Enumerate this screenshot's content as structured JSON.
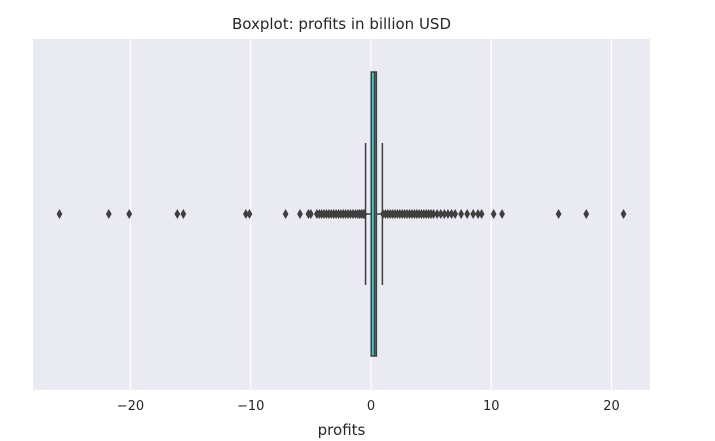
{
  "colors": {
    "plot_background": "#EAEAF2",
    "grid": "#FFFFFF",
    "box_fill": "#3FC9C4",
    "box_edge": "#3F3F3F",
    "flier": "#3F3F3F",
    "text": "#262626"
  },
  "chart_data": {
    "type": "boxplot",
    "orientation": "horizontal",
    "title": "Boxplot: profits in billion USD",
    "xlabel": "profits",
    "ylabel": "",
    "xlim": [
      -28.1,
      23.2
    ],
    "xticks": [
      -20,
      -10,
      0,
      10,
      20
    ],
    "xtick_labels": [
      "−20",
      "−10",
      "0",
      "10",
      "20"
    ],
    "grid": true,
    "box": {
      "q1": 0.02,
      "median": 0.3,
      "q3": 0.45,
      "whisker_low": -0.45,
      "whisker_high": 0.95
    },
    "outliers": [
      -25.9,
      -21.8,
      -20.1,
      -16.1,
      -15.6,
      -10.4,
      -10.1,
      -7.1,
      -5.9,
      -5.2,
      -5.0,
      -4.5,
      -4.3,
      -4.1,
      -3.9,
      -3.7,
      -3.5,
      -3.3,
      -3.1,
      -2.9,
      -2.7,
      -2.5,
      -2.3,
      -2.1,
      -1.9,
      -1.7,
      -1.5,
      -1.3,
      -1.1,
      -0.95,
      -0.8,
      -0.65,
      -0.55,
      1.0,
      1.2,
      1.4,
      1.6,
      1.8,
      2.0,
      2.2,
      2.4,
      2.6,
      2.8,
      3.0,
      3.2,
      3.4,
      3.6,
      3.8,
      4.0,
      4.2,
      4.4,
      4.6,
      4.8,
      5.0,
      5.2,
      5.5,
      5.8,
      6.1,
      6.4,
      6.7,
      7.0,
      7.5,
      8.0,
      8.5,
      8.9,
      9.2,
      10.2,
      10.9,
      15.6,
      17.9,
      21.0
    ]
  }
}
